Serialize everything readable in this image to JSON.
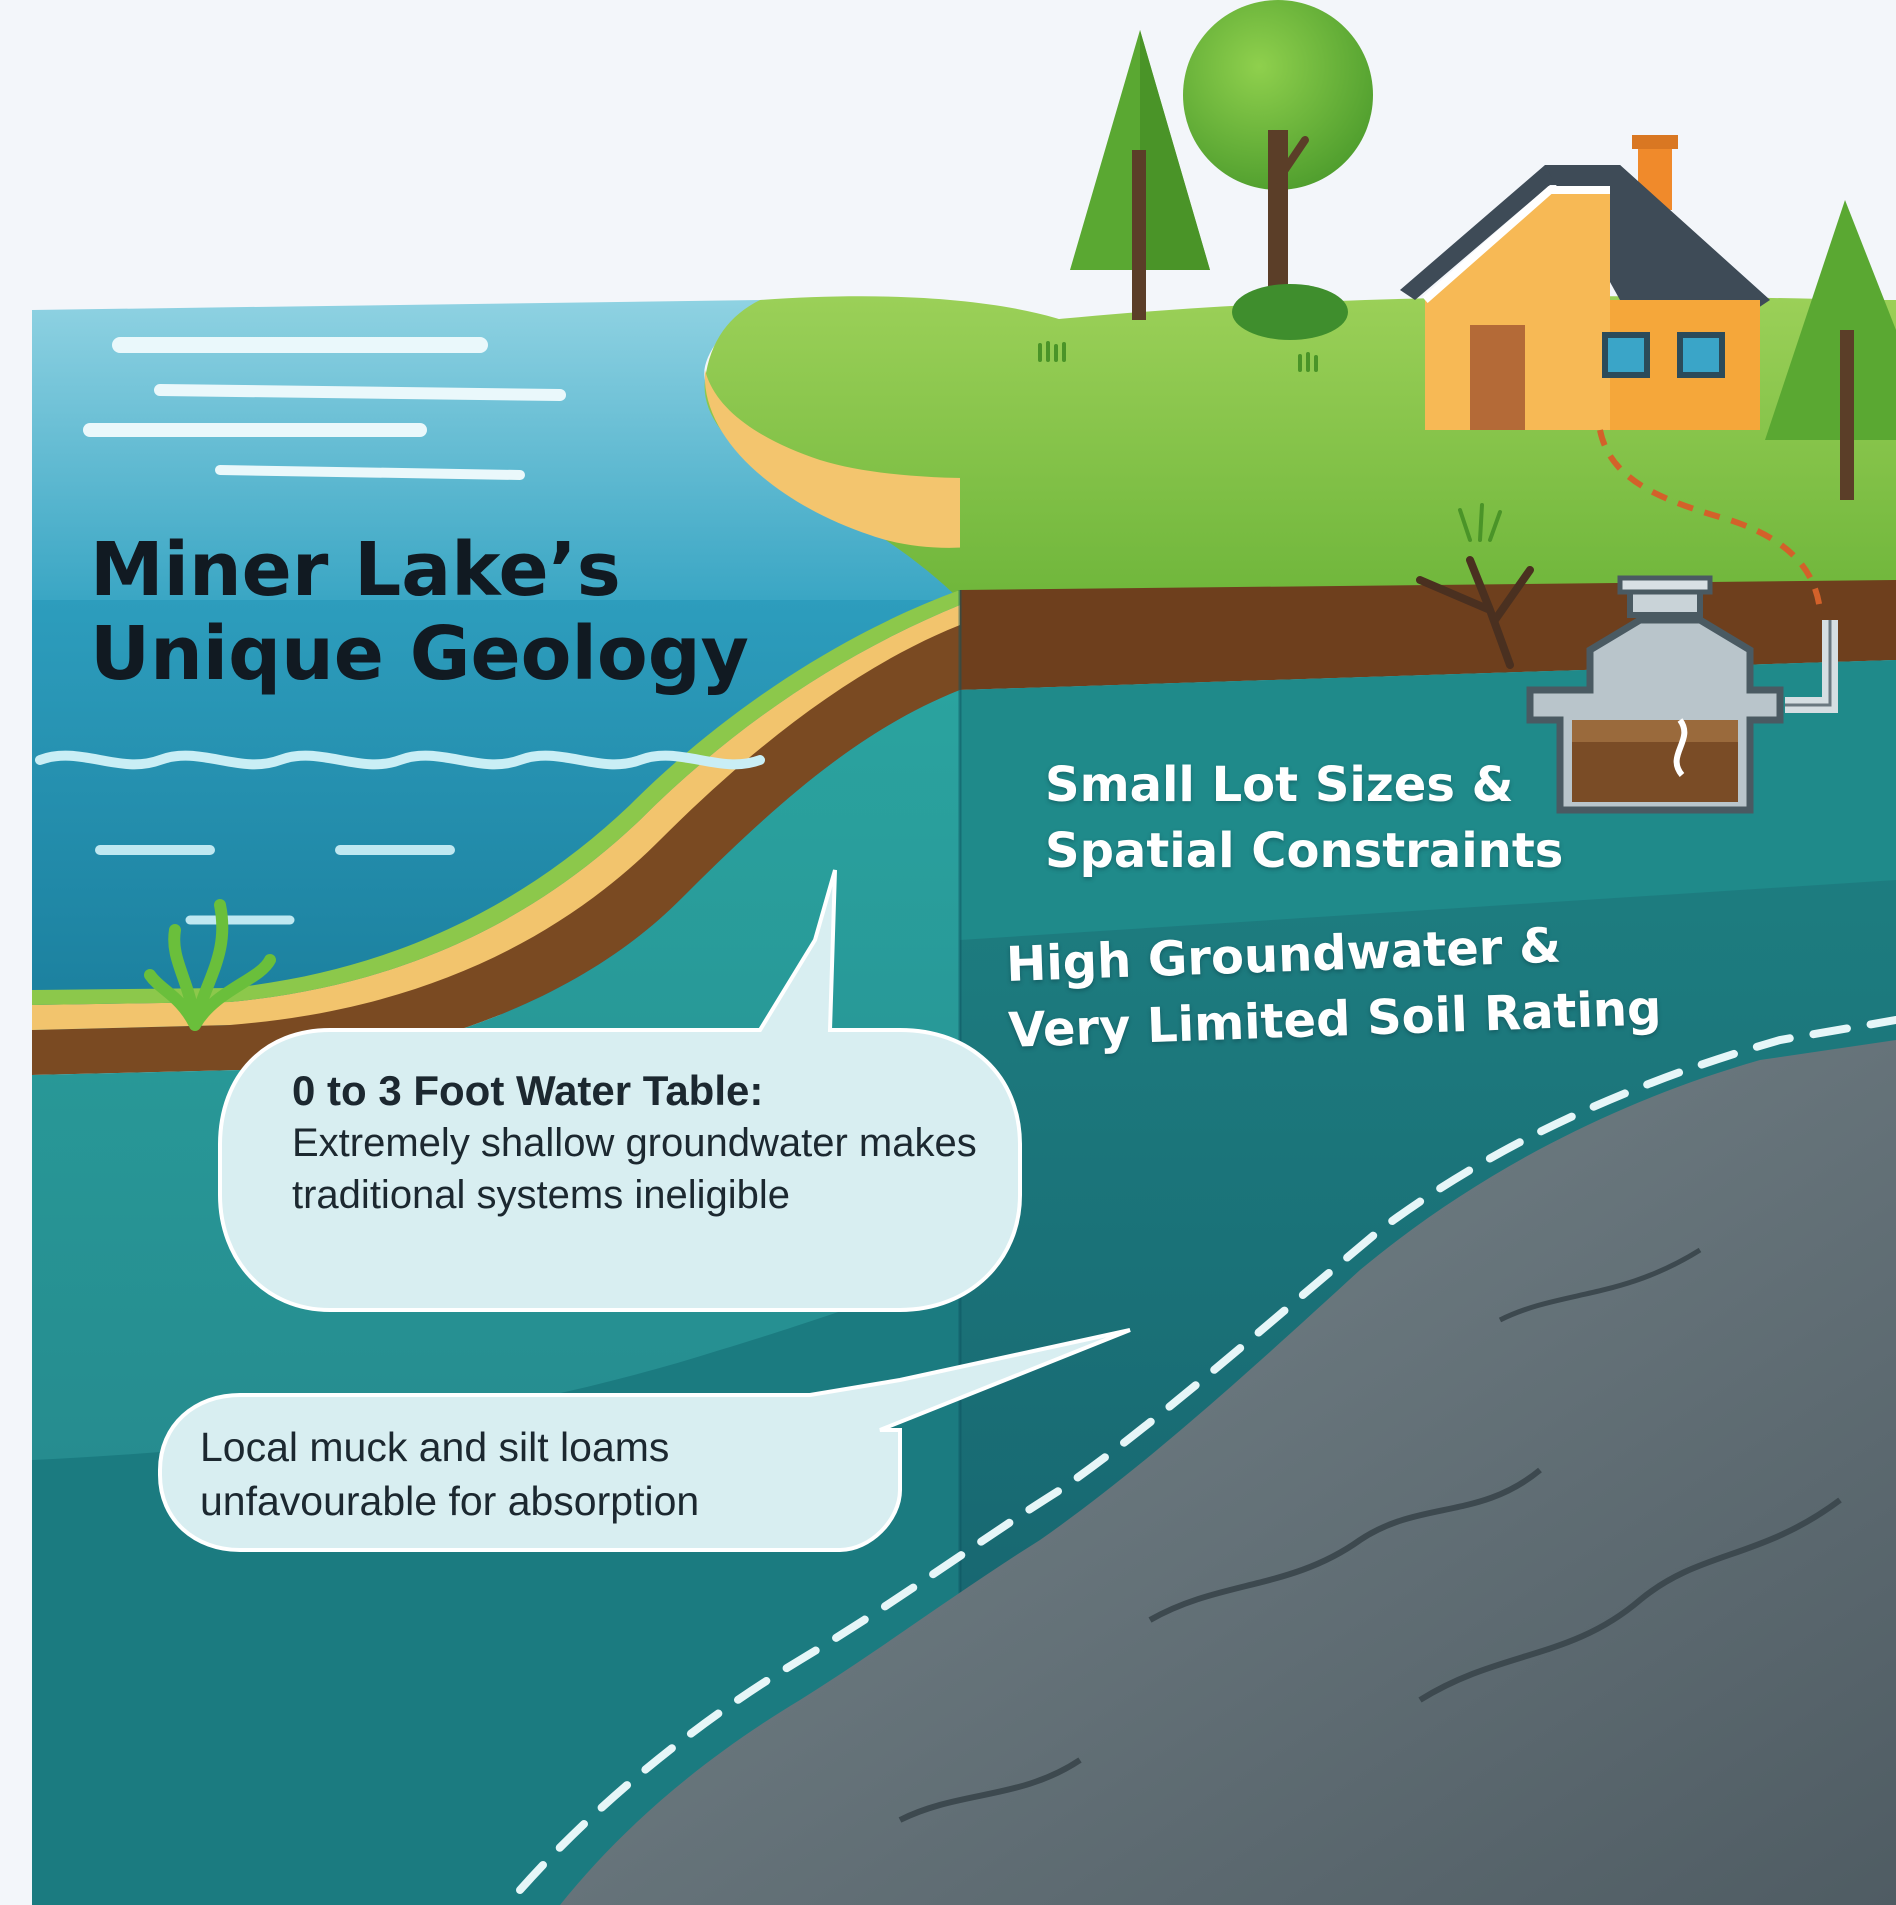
{
  "title": {
    "line1": "Miner Lake’s",
    "line2": "Unique Geology"
  },
  "labels": {
    "lot_sizes": {
      "line1": "Small Lot Sizes &",
      "line2": "Spatial Constraints"
    },
    "groundwater": {
      "line1": "High Groundwater &",
      "line2": "Very Limited Soil Rating"
    }
  },
  "callouts": {
    "water_table": {
      "heading": "0 to 3 Foot Water Table:",
      "body": "Extremely shallow groundwater makes traditional systems ineligible"
    },
    "soil": {
      "text": "Local muck and silt loams unfavourable for absorption"
    }
  },
  "colors": {
    "page_background": "#f3f6fa",
    "lake_surface": "#4fb3cf",
    "deep_water": "#1f8fae",
    "grass": "#7cc043",
    "sand": "#f2c46d",
    "topsoil": "#7a4a22",
    "groundwater_zone": "#2a9a97",
    "saturated_zone": "#166f78",
    "bedrock": "#5d6c73",
    "house_wall": "#f7b955",
    "house_roof": "#3e4b57",
    "bubble_fill": "#d8eef1"
  }
}
